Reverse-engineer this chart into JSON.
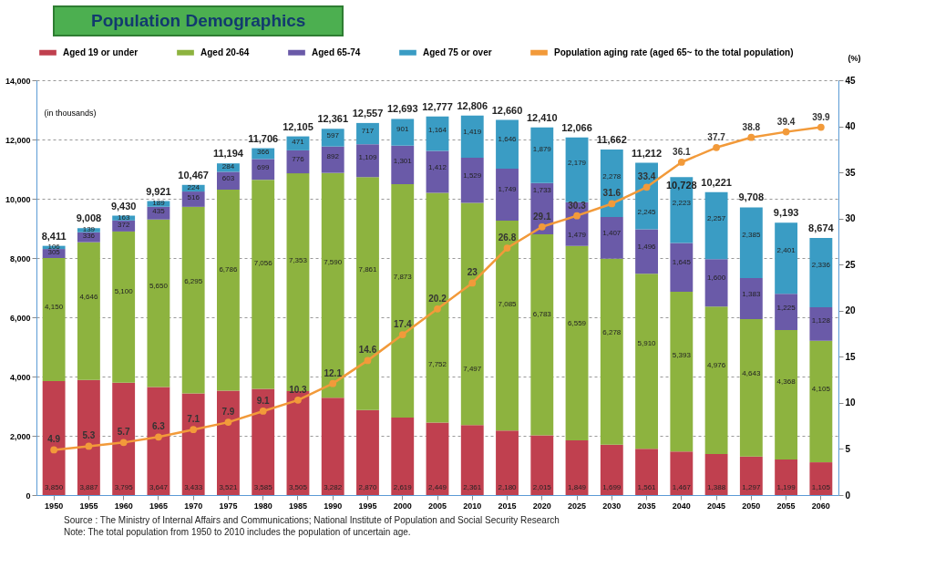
{
  "chart_data": {
    "type": "bar",
    "title": "Population Demographics",
    "ylabel": "(in thousands)",
    "y2label": "(%)",
    "categories": [
      "1950",
      "1955",
      "1960",
      "1965",
      "1970",
      "1975",
      "1980",
      "1985",
      "1990",
      "1995",
      "2000",
      "2005",
      "2010",
      "2015",
      "2020",
      "2025",
      "2030",
      "2035",
      "2040",
      "2045",
      "2050",
      "2055",
      "2060"
    ],
    "stacked": true,
    "series": [
      {
        "name": "Aged 19 or under",
        "color": "#c0404f",
        "values": [
          3850,
          3887,
          3795,
          3647,
          3433,
          3521,
          3585,
          3505,
          3282,
          2870,
          2619,
          2449,
          2361,
          2180,
          2015,
          1849,
          1699,
          1561,
          1467,
          1388,
          1297,
          1199,
          1105
        ],
        "value_labels": [
          "3,850",
          "3,887",
          "3,795",
          "3,647",
          "3,433",
          "3,521",
          "3,585",
          "3,505",
          "3,282",
          "2,870",
          "2,619",
          "2,449",
          "2,361",
          "2,180",
          "2,015",
          "1,849",
          "1,699",
          "1,561",
          "1,467",
          "1,388",
          "1,297",
          "1,199",
          "1,105"
        ]
      },
      {
        "name": "Aged 20-64",
        "color": "#8db33f",
        "values": [
          4150,
          4646,
          5100,
          5650,
          6295,
          6786,
          7056,
          7353,
          7590,
          7861,
          7873,
          7752,
          7497,
          7085,
          6783,
          6559,
          6278,
          5910,
          5393,
          4976,
          4643,
          4368,
          4105
        ],
        "value_labels": [
          "4,150",
          "4,646",
          "5,100",
          "5,650",
          "6,295",
          "6,786",
          "7,056",
          "7,353",
          "7,590",
          "7,861",
          "7,873",
          "7,752",
          "7,497",
          "7,085",
          "6,783",
          "6,559",
          "6,278",
          "5,910",
          "5,393",
          "4,976",
          "4,643",
          "4,368",
          "4,105"
        ]
      },
      {
        "name": "Aged 65-74",
        "color": "#6a5aa8",
        "values": [
          305,
          336,
          372,
          435,
          516,
          603,
          699,
          776,
          892,
          1109,
          1301,
          1412,
          1529,
          1749,
          1733,
          1479,
          1407,
          1496,
          1645,
          1600,
          1383,
          1225,
          1128
        ],
        "value_labels": [
          "305",
          "336",
          "372",
          "435",
          "516",
          "603",
          "699",
          "776",
          "892",
          "1,109",
          "1,301",
          "1,412",
          "1,529",
          "1,749",
          "1,733",
          "1,479",
          "1,407",
          "1,496",
          "1,645",
          "1,600",
          "1,383",
          "1,225",
          "1,128"
        ]
      },
      {
        "name": "Aged 75 or over",
        "color": "#3a9cc4",
        "values": [
          106,
          139,
          163,
          189,
          224,
          284,
          366,
          471,
          597,
          717,
          901,
          1164,
          1419,
          1646,
          1879,
          2179,
          2278,
          2245,
          2223,
          2257,
          2385,
          2401,
          2336
        ],
        "value_labels": [
          "106",
          "139",
          "163",
          "189",
          "224",
          "284",
          "366",
          "471",
          "597",
          "717",
          "901",
          "1,164",
          "1,419",
          "1,646",
          "1,879",
          "2,179",
          "2,278",
          "2,245",
          "2,223",
          "2,257",
          "2,385",
          "2,401",
          "2,336"
        ]
      },
      {
        "name": "Population aging rate (aged 65~ to the total population)",
        "color": "#f29a3a",
        "type": "line",
        "axis": "y2",
        "values": [
          4.9,
          5.3,
          5.7,
          6.3,
          7.1,
          7.9,
          9.1,
          10.3,
          12.1,
          14.6,
          17.4,
          20.2,
          23,
          26.8,
          29.1,
          30.3,
          31.6,
          33.4,
          36.1,
          37.7,
          38.8,
          39.4,
          39.9
        ]
      }
    ],
    "totals": [
      "8,411",
      "9,008",
      "9,430",
      "9,921",
      "10,467",
      "11,194",
      "11,706",
      "12,105",
      "12,361",
      "12,557",
      "12,693",
      "12,777",
      "12,806",
      "12,660",
      "12,410",
      "12,066",
      "11,662",
      "11,212",
      "10,728",
      "10,221",
      "9,708",
      "9,193",
      "8,674"
    ],
    "data_labels": true,
    "ylim": [
      0,
      14000
    ],
    "yticks": [
      0,
      {
        "value": 2000,
        "label": "2,000"
      },
      {
        "value": 4000,
        "label": "4,000"
      },
      {
        "value": 6000,
        "label": "6,000"
      },
      {
        "value": 8000,
        "label": "8,000"
      },
      {
        "value": 10000,
        "label": "10,000"
      },
      {
        "value": 12000,
        "label": "12,000"
      },
      {
        "value": 14000,
        "label": "14,000"
      }
    ],
    "y2lim": [
      0,
      45
    ],
    "y2ticks": [
      0,
      5,
      10,
      15,
      20,
      25,
      30,
      35,
      40,
      45
    ],
    "grid": "y",
    "legend": "top",
    "marker": "circle",
    "line_style": "solid",
    "annotations": [
      "Source : The Ministry of Internal Affairs and Communications; National Institute of Population and Social Security Research",
      "Note: The total population from 1950 to 2010 includes the population of uncertain age."
    ]
  }
}
